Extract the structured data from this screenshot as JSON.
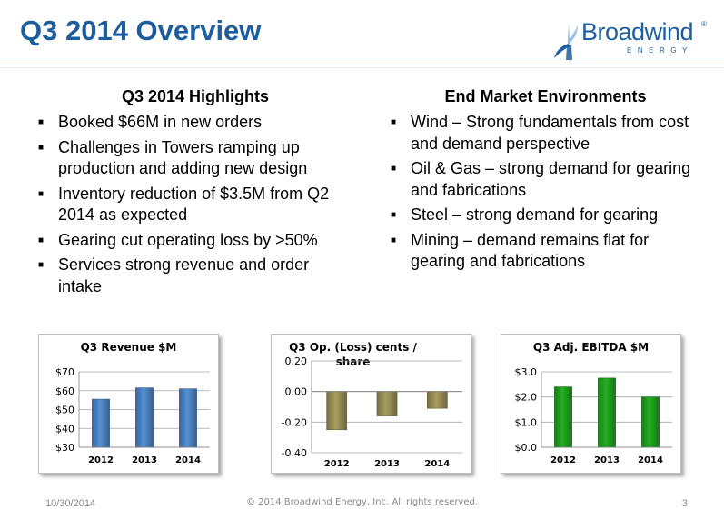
{
  "slide": {
    "title": "Q3 2014 Overview",
    "logo": {
      "name": "Broadwind",
      "tm": "®",
      "sub": "ENERGY",
      "color": "#1f5e9e"
    }
  },
  "left_column": {
    "heading": "Q3 2014 Highlights",
    "bullets": [
      "Booked $66M in new orders",
      "Challenges in Towers ramping up production and adding new design",
      "Inventory reduction of $3.5M from Q2 2014 as expected",
      "Gearing cut operating loss by >50%",
      "Services strong revenue and order intake"
    ]
  },
  "right_column": {
    "heading": "End Market Environments",
    "bullets": [
      "Wind – Strong fundamentals from cost and demand perspective",
      "Oil & Gas – strong demand for gearing and fabrications",
      "Steel – strong demand for gearing",
      "Mining – demand remains flat for gearing and fabrications"
    ]
  },
  "chart_data": [
    {
      "type": "bar",
      "title": "Q3 Revenue $M",
      "categories": [
        "2012",
        "2013",
        "2014"
      ],
      "values": [
        55.5,
        61.5,
        61
      ],
      "ylim": [
        30,
        70
      ],
      "yticks": [
        30,
        40,
        50,
        60,
        70
      ],
      "ytick_labels": [
        "$30",
        "$40",
        "$50",
        "$60",
        "$70"
      ],
      "color": "#4a7ebb",
      "grid": true
    },
    {
      "type": "bar",
      "title": "Q3 Op. (Loss) cents / share",
      "title_lines": [
        "Q3 Op. (Loss) cents /",
        "share"
      ],
      "categories": [
        "2012",
        "2013",
        "2014"
      ],
      "values": [
        -0.25,
        -0.16,
        -0.11
      ],
      "ylim": [
        -0.4,
        0.2
      ],
      "yticks": [
        -0.4,
        -0.2,
        0.0,
        0.2
      ],
      "ytick_labels": [
        "-0.40",
        "-0.20",
        "0.00",
        "0.20"
      ],
      "color": "#938953",
      "grid": true
    },
    {
      "type": "bar",
      "title": "Q3 Adj. EBITDA $M",
      "categories": [
        "2012",
        "2013",
        "2014"
      ],
      "values": [
        2.4,
        2.75,
        2.0
      ],
      "ylim": [
        0,
        3
      ],
      "yticks": [
        0,
        1,
        2,
        3
      ],
      "ytick_labels": [
        "$0.0",
        "$1.0",
        "$2.0",
        "$3.0"
      ],
      "color": "#1e9a1e",
      "grid": true
    }
  ],
  "footer": {
    "date": "10/30/2014",
    "copyright": "© 2014 Broadwind Energy, Inc. All rights reserved.",
    "page": "3"
  }
}
